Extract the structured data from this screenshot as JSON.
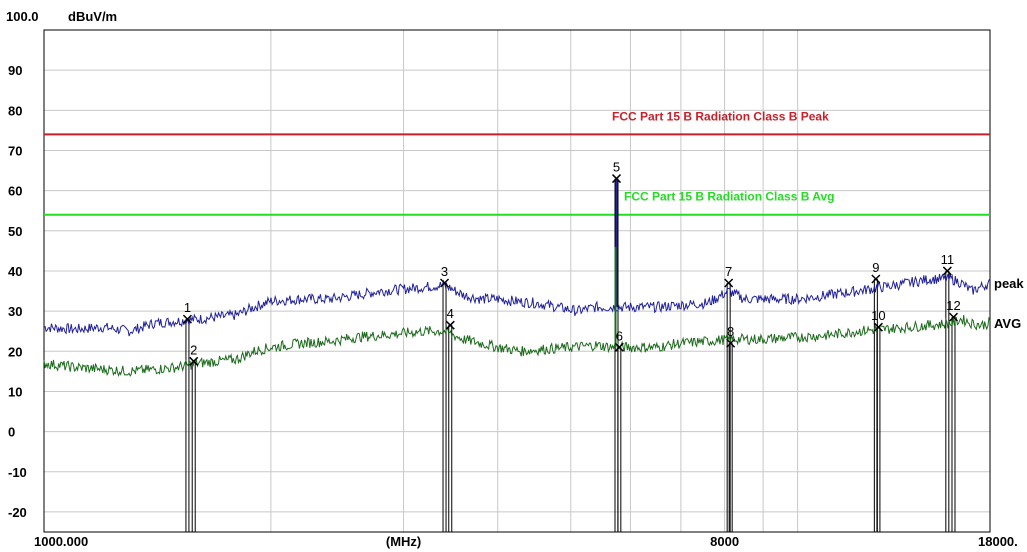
{
  "chart_data": {
    "type": "line",
    "y_top_label": "100.0",
    "y_unit": "dBuV/m",
    "x_unit": "(MHz)",
    "ylim": [
      -25,
      100
    ],
    "xlim": [
      1000,
      18000
    ],
    "x_scale": "log",
    "grid": true,
    "y_ticks": [
      90,
      80,
      70,
      60,
      50,
      40,
      30,
      20,
      10,
      0,
      -10,
      -20
    ],
    "x_tick_labels": [
      {
        "value": 1000,
        "text": "1000.000"
      },
      {
        "value": 3000,
        "text": "(MHz)"
      },
      {
        "value": 8000,
        "text": "8000"
      },
      {
        "value": 18000,
        "text": "18000."
      }
    ],
    "limits": [
      {
        "name": "FCC Part 15 B Radiation Class B Peak",
        "value": 74,
        "color": "#c8202a"
      },
      {
        "name": "FCC Part 15 B Radiation Class B Avg",
        "value": 54,
        "color": "#22dd22"
      }
    ],
    "series": [
      {
        "name": "peak",
        "color": "#22229c",
        "points": [
          [
            1000,
            26
          ],
          [
            1100,
            25.5
          ],
          [
            1200,
            26
          ],
          [
            1300,
            25
          ],
          [
            1400,
            27
          ],
          [
            1500,
            27.5
          ],
          [
            1600,
            28
          ],
          [
            1800,
            29
          ],
          [
            1900,
            31
          ],
          [
            2000,
            32.5
          ],
          [
            2200,
            33
          ],
          [
            2400,
            33
          ],
          [
            2600,
            34
          ],
          [
            2800,
            35
          ],
          [
            3000,
            35.5
          ],
          [
            3200,
            36
          ],
          [
            3400,
            36.5
          ],
          [
            3600,
            34
          ],
          [
            3800,
            33
          ],
          [
            4000,
            33
          ],
          [
            4200,
            32.5
          ],
          [
            4500,
            32
          ],
          [
            4800,
            31
          ],
          [
            5100,
            30
          ],
          [
            5400,
            31
          ],
          [
            5700,
            31
          ],
          [
            6000,
            31
          ],
          [
            6500,
            31
          ],
          [
            7000,
            31.5
          ],
          [
            7600,
            32
          ],
          [
            8100,
            35
          ],
          [
            8500,
            33
          ],
          [
            9000,
            33
          ],
          [
            10000,
            33
          ],
          [
            11000,
            34
          ],
          [
            12000,
            35
          ],
          [
            13000,
            36
          ],
          [
            14000,
            37
          ],
          [
            15000,
            38
          ],
          [
            16000,
            38
          ],
          [
            16500,
            37
          ],
          [
            17000,
            35
          ],
          [
            17500,
            36
          ],
          [
            18000,
            37
          ]
        ]
      },
      {
        "name": "AVG",
        "color": "#1d6b1d",
        "points": [
          [
            1000,
            17
          ],
          [
            1100,
            16
          ],
          [
            1200,
            15.5
          ],
          [
            1300,
            15
          ],
          [
            1400,
            15.5
          ],
          [
            1500,
            16
          ],
          [
            1600,
            17
          ],
          [
            1800,
            18
          ],
          [
            1900,
            20
          ],
          [
            2000,
            21
          ],
          [
            2200,
            22
          ],
          [
            2400,
            22.5
          ],
          [
            2600,
            23.5
          ],
          [
            2800,
            24
          ],
          [
            3000,
            24.5
          ],
          [
            3200,
            25
          ],
          [
            3400,
            25
          ],
          [
            3600,
            23
          ],
          [
            3800,
            22
          ],
          [
            4000,
            21
          ],
          [
            4300,
            20
          ],
          [
            4600,
            20.5
          ],
          [
            5000,
            21
          ],
          [
            5400,
            21.5
          ],
          [
            5700,
            21
          ],
          [
            6000,
            21
          ],
          [
            6500,
            21
          ],
          [
            7000,
            22
          ],
          [
            7600,
            22.5
          ],
          [
            8100,
            23
          ],
          [
            8500,
            23
          ],
          [
            9000,
            23
          ],
          [
            10000,
            23.5
          ],
          [
            11000,
            24
          ],
          [
            12000,
            25
          ],
          [
            13000,
            25.5
          ],
          [
            14000,
            26
          ],
          [
            15000,
            26.5
          ],
          [
            16000,
            27
          ],
          [
            16500,
            28
          ],
          [
            17000,
            27
          ],
          [
            17500,
            26.5
          ],
          [
            18000,
            27
          ]
        ]
      }
    ],
    "markers": [
      {
        "label": "1",
        "x": 1550,
        "y": 28
      },
      {
        "label": "2",
        "x": 1580,
        "y": 17.5
      },
      {
        "label": "3",
        "x": 3400,
        "y": 37
      },
      {
        "label": "4",
        "x": 3460,
        "y": 26.5
      },
      {
        "label": "5",
        "x": 5750,
        "y": 63
      },
      {
        "label": "6",
        "x": 5800,
        "y": 21
      },
      {
        "label": "7",
        "x": 8100,
        "y": 37
      },
      {
        "label": "8",
        "x": 8150,
        "y": 22
      },
      {
        "label": "9",
        "x": 12700,
        "y": 38
      },
      {
        "label": "10",
        "x": 12800,
        "y": 26
      },
      {
        "label": "11",
        "x": 15800,
        "y": 40
      },
      {
        "label": "12",
        "x": 16100,
        "y": 28.5
      }
    ]
  }
}
